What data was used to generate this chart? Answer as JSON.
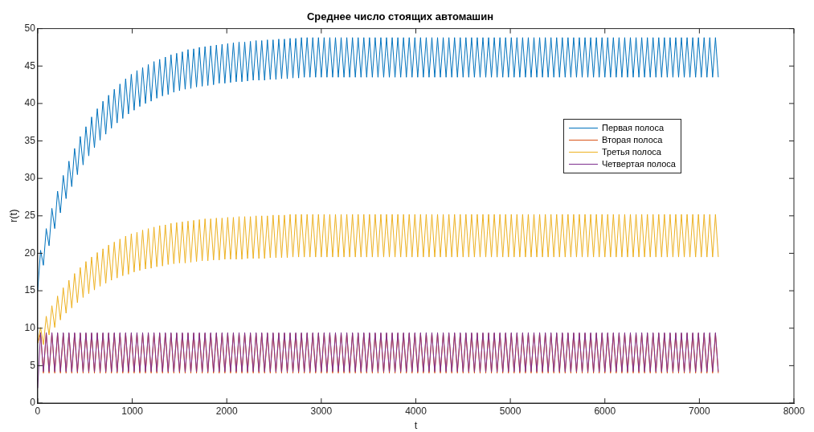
{
  "chart_data": {
    "type": "line",
    "title": "Среднее число стоящих автомашин",
    "xlabel": "t",
    "ylabel": "r(t)",
    "xlim": [
      0,
      8000
    ],
    "xticks": [
      0,
      1000,
      2000,
      3000,
      4000,
      5000,
      6000,
      7000,
      8000
    ],
    "ylim": [
      0,
      50
    ],
    "yticks": [
      0,
      5,
      10,
      15,
      20,
      25,
      30,
      35,
      40,
      45,
      50
    ],
    "grid": false,
    "legend": "top right",
    "marker": "none",
    "line_style": "solid",
    "x": [
      0,
      30,
      60,
      90,
      120,
      150,
      180,
      210,
      240,
      270,
      300,
      330,
      360,
      390,
      420,
      450,
      480,
      510,
      540,
      570,
      600,
      630,
      660,
      690,
      720,
      750,
      780,
      810,
      840,
      870,
      900,
      930,
      960,
      990,
      1020,
      1050,
      1080,
      1110,
      1140,
      1170,
      1200,
      1230,
      1260,
      1290,
      1320,
      1350,
      1380,
      1410,
      1440,
      1470,
      1500,
      1530,
      1560,
      1590,
      1620,
      1650,
      1680,
      1710,
      1740,
      1770,
      1800,
      1830,
      1860,
      1890,
      1920,
      1950,
      1980,
      2010,
      2040,
      2070,
      2100,
      2130,
      2160,
      2190,
      2220,
      2250,
      2280,
      2310,
      2340,
      2370,
      2400,
      2430,
      2460,
      2490,
      2520,
      2550,
      2580,
      2610,
      2640,
      2670,
      2700,
      2730,
      2760,
      2790,
      2820,
      2850,
      2880,
      2910,
      2940,
      2970,
      3000,
      3030,
      3060,
      3090,
      3120,
      3150,
      3180,
      3210,
      3240,
      3270,
      3300,
      3330,
      3360,
      3390,
      3420,
      3450,
      3480,
      3510,
      3540,
      3570,
      3600,
      3630,
      3660,
      3690,
      3720,
      3750,
      3780,
      3810,
      3840,
      3870,
      3900,
      3930,
      3960,
      3990,
      4020,
      4050,
      4080,
      4110,
      4140,
      4170,
      4200,
      4230,
      4260,
      4290,
      4320,
      4350,
      4380,
      4410,
      4440,
      4470,
      4500,
      4530,
      4560,
      4590,
      4620,
      4650,
      4680,
      4710,
      4740,
      4770,
      4800,
      4830,
      4860,
      4890,
      4920,
      4950,
      4980,
      5010,
      5040,
      5070,
      5100,
      5130,
      5160,
      5190,
      5220,
      5250,
      5280,
      5310,
      5340,
      5370,
      5400,
      5430,
      5460,
      5490,
      5520,
      5550,
      5580,
      5610,
      5640,
      5670,
      5700,
      5730,
      5760,
      5790,
      5820,
      5850,
      5880,
      5910,
      5940,
      5970,
      6000,
      6030,
      6060,
      6090,
      6120,
      6150,
      6180,
      6210,
      6240,
      6270,
      6300,
      6330,
      6360,
      6390,
      6420,
      6450,
      6480,
      6510,
      6540,
      6570,
      6600,
      6630,
      6660,
      6690,
      6720,
      6750,
      6780,
      6810,
      6840,
      6870,
      6900,
      6930,
      6960,
      6990,
      7020,
      7050,
      7080,
      7110,
      7140,
      7170,
      7200
    ],
    "series": [
      {
        "name": "Первая полоса",
        "color": "#0072bd",
        "values": [
          15,
          20.4,
          18.4,
          23.3,
          21.0,
          26.0,
          23.3,
          28.3,
          25.4,
          30.4,
          27.3,
          32.3,
          28.9,
          34.0,
          30.5,
          35.6,
          31.8,
          36.9,
          33.0,
          38.2,
          34.1,
          39.3,
          35.1,
          40.3,
          35.9,
          41.1,
          36.7,
          41.9,
          37.4,
          42.6,
          38.0,
          43.3,
          38.6,
          43.9,
          39.1,
          44.4,
          39.6,
          44.8,
          40.0,
          45.2,
          40.3,
          45.6,
          40.7,
          45.9,
          41.0,
          46.2,
          41.2,
          46.5,
          41.5,
          46.7,
          41.7,
          46.9,
          41.9,
          47.2,
          42.0,
          47.3,
          42.2,
          47.5,
          42.3,
          47.6,
          42.4,
          47.7,
          42.5,
          47.8,
          42.7,
          47.9,
          42.7,
          48.0,
          42.8,
          48.1,
          42.9,
          48.2,
          42.9,
          48.2,
          43.0,
          48.3,
          43.1,
          48.4,
          43.1,
          48.4,
          43.1,
          48.5,
          43.2,
          48.5,
          43.2,
          48.6,
          43.3,
          48.6,
          43.3,
          48.7,
          43.4,
          48.7,
          43.4,
          48.8,
          43.5,
          48.8,
          43.5,
          48.8,
          43.5,
          48.8,
          43.5,
          48.8,
          43.5,
          48.8,
          43.5,
          48.8,
          43.5,
          48.8,
          43.5,
          48.8,
          43.5,
          48.8,
          43.5,
          48.8,
          43.5,
          48.8,
          43.5,
          48.8,
          43.5,
          48.8,
          43.5,
          48.8,
          43.5,
          48.8,
          43.5,
          48.8,
          43.5,
          48.8,
          43.5,
          48.8,
          43.5,
          48.8,
          43.5,
          48.8,
          43.5,
          48.8,
          43.5,
          48.8,
          43.5,
          48.8,
          43.5,
          48.8,
          43.5,
          48.8,
          43.5,
          48.8,
          43.5,
          48.8,
          43.5,
          48.8,
          43.5,
          48.8,
          43.5,
          48.8,
          43.5,
          48.8,
          43.5,
          48.8,
          43.5,
          48.8,
          43.5,
          48.8,
          43.5,
          48.8,
          43.5,
          48.8,
          43.5,
          48.8,
          43.5,
          48.8,
          43.5,
          48.8,
          43.5,
          48.8,
          43.5,
          48.8,
          43.5,
          48.8,
          43.5,
          48.8,
          43.5,
          48.8,
          43.5,
          48.8,
          43.5,
          48.8,
          43.5,
          48.8,
          43.5,
          48.8,
          43.5,
          48.8,
          43.5,
          48.8,
          43.5,
          48.8,
          43.5,
          48.8,
          43.5,
          48.8,
          43.5,
          48.8,
          43.5,
          48.8,
          43.5,
          48.8,
          43.5,
          48.8,
          43.5,
          48.8,
          43.5,
          48.8,
          43.5,
          48.8,
          43.5,
          48.8,
          43.5,
          48.8,
          43.5,
          48.8,
          43.5,
          48.8,
          43.5,
          48.8,
          43.5,
          48.8,
          43.5,
          48.8,
          43.5,
          48.8,
          43.5,
          48.8,
          43.5,
          48.8,
          43.5,
          48.8,
          43.5,
          48.8,
          43.5,
          48.8,
          43.5
        ]
      },
      {
        "name": "Вторая полоса",
        "color": "#d95319",
        "values": [
          8,
          9.3,
          4.0,
          9.3,
          4.0,
          9.3,
          4.0,
          9.3,
          4.0,
          9.3,
          4.0,
          9.3,
          4.0,
          9.3,
          4.0,
          9.3,
          4.0,
          9.3,
          4.0,
          9.3,
          4.0,
          9.3,
          4.0,
          9.3,
          4.0,
          9.3,
          4.0,
          9.3,
          4.0,
          9.3,
          4.0,
          9.3,
          4.0,
          9.3,
          4.0,
          9.3,
          4.0,
          9.3,
          4.0,
          9.3,
          4.0,
          9.3,
          4.0,
          9.3,
          4.0,
          9.3,
          4.0,
          9.3,
          4.0,
          9.3,
          4.0,
          9.3,
          4.0,
          9.3,
          4.0,
          9.3,
          4.0,
          9.3,
          4.0,
          9.3,
          4.0,
          9.3,
          4.0,
          9.3,
          4.0,
          9.3,
          4.0,
          9.3,
          4.0,
          9.3,
          4.0,
          9.3,
          4.0,
          9.3,
          4.0,
          9.3,
          4.0,
          9.3,
          4.0,
          9.3,
          4.0,
          9.3,
          4.0,
          9.3,
          4.0,
          9.3,
          4.0,
          9.3,
          4.0,
          9.3,
          4.0,
          9.3,
          4.0,
          9.3,
          4.0,
          9.3,
          4.0,
          9.3,
          4.0,
          9.3,
          4.0,
          9.3,
          4.0,
          9.3,
          4.0,
          9.3,
          4.0,
          9.3,
          4.0,
          9.3,
          4.0,
          9.3,
          4.0,
          9.3,
          4.0,
          9.3,
          4.0,
          9.3,
          4.0,
          9.3,
          4.0,
          9.3,
          4.0,
          9.3,
          4.0,
          9.3,
          4.0,
          9.3,
          4.0,
          9.3,
          4.0,
          9.3,
          4.0,
          9.3,
          4.0,
          9.3,
          4.0,
          9.3,
          4.0,
          9.3,
          4.0,
          9.3,
          4.0,
          9.3,
          4.0,
          9.3,
          4.0,
          9.3,
          4.0,
          9.3,
          4.0,
          9.3,
          4.0,
          9.3,
          4.0,
          9.3,
          4.0,
          9.3,
          4.0,
          9.3,
          4.0,
          9.3,
          4.0,
          9.3,
          4.0,
          9.3,
          4.0,
          9.3,
          4.0,
          9.3,
          4.0,
          9.3,
          4.0,
          9.3,
          4.0,
          9.3,
          4.0,
          9.3,
          4.0,
          9.3,
          4.0,
          9.3,
          4.0,
          9.3,
          4.0,
          9.3,
          4.0,
          9.3,
          4.0,
          9.3,
          4.0,
          9.3,
          4.0,
          9.3,
          4.0,
          9.3,
          4.0,
          9.3,
          4.0,
          9.3,
          4.0,
          9.3,
          4.0,
          9.3,
          4.0,
          9.3,
          4.0,
          9.3,
          4.0,
          9.3,
          4.0,
          9.3,
          4.0,
          9.3,
          4.0,
          9.3,
          4.0,
          9.3,
          4.0,
          9.3,
          4.0,
          9.3,
          4.0,
          9.3,
          4.0,
          9.3,
          4.0,
          9.3,
          4.0,
          9.3,
          4.0,
          9.3,
          4.0,
          9.3,
          4.0,
          9.3,
          4.0,
          9.3,
          4.0,
          9.3,
          4.0
        ]
      },
      {
        "name": "Третья полоса",
        "color": "#edb120",
        "values": [
          8,
          10.1,
          7.8,
          11.6,
          9.1,
          13.0,
          10.1,
          14.3,
          11.1,
          15.4,
          12.0,
          16.4,
          12.7,
          17.3,
          13.4,
          18.1,
          14.1,
          18.9,
          14.6,
          19.5,
          15.1,
          20.1,
          15.6,
          20.6,
          16.0,
          21.1,
          16.4,
          21.5,
          16.7,
          21.9,
          17.0,
          22.3,
          17.2,
          22.6,
          17.5,
          22.8,
          17.7,
          23.1,
          17.9,
          23.3,
          18.0,
          23.5,
          18.2,
          23.7,
          18.3,
          23.8,
          18.5,
          24.0,
          18.6,
          24.1,
          18.7,
          24.2,
          18.7,
          24.3,
          18.8,
          24.4,
          18.9,
          24.5,
          19.0,
          24.6,
          19.0,
          24.6,
          19.1,
          24.7,
          19.1,
          24.7,
          19.2,
          24.8,
          19.2,
          24.8,
          19.2,
          24.9,
          19.2,
          24.9,
          19.3,
          24.9,
          19.3,
          25.0,
          19.3,
          25.0,
          19.3,
          25.0,
          19.4,
          25.1,
          19.4,
          25.1,
          19.4,
          25.1,
          19.4,
          25.2,
          19.5,
          25.2,
          19.5,
          25.2,
          19.5,
          25.2,
          19.5,
          25.2,
          19.5,
          25.2,
          19.5,
          25.2,
          19.5,
          25.2,
          19.5,
          25.2,
          19.5,
          25.2,
          19.5,
          25.2,
          19.5,
          25.2,
          19.5,
          25.2,
          19.5,
          25.2,
          19.5,
          25.2,
          19.5,
          25.2,
          19.5,
          25.2,
          19.5,
          25.2,
          19.5,
          25.2,
          19.5,
          25.2,
          19.5,
          25.2,
          19.5,
          25.2,
          19.5,
          25.2,
          19.5,
          25.2,
          19.5,
          25.2,
          19.5,
          25.2,
          19.5,
          25.2,
          19.5,
          25.2,
          19.5,
          25.2,
          19.5,
          25.2,
          19.5,
          25.2,
          19.5,
          25.2,
          19.5,
          25.2,
          19.5,
          25.2,
          19.5,
          25.2,
          19.5,
          25.2,
          19.5,
          25.2,
          19.5,
          25.2,
          19.5,
          25.2,
          19.5,
          25.2,
          19.5,
          25.2,
          19.5,
          25.2,
          19.5,
          25.2,
          19.5,
          25.2,
          19.5,
          25.2,
          19.5,
          25.2,
          19.5,
          25.2,
          19.5,
          25.2,
          19.5,
          25.2,
          19.5,
          25.2,
          19.5,
          25.2,
          19.5,
          25.2,
          19.5,
          25.2,
          19.5,
          25.2,
          19.5,
          25.2,
          19.5,
          25.2,
          19.5,
          25.2,
          19.5,
          25.2,
          19.5,
          25.2,
          19.5,
          25.2,
          19.5,
          25.2,
          19.5,
          25.2,
          19.5,
          25.2,
          19.5,
          25.2,
          19.5,
          25.2,
          19.5,
          25.2,
          19.5,
          25.2,
          19.5,
          25.2,
          19.5,
          25.2,
          19.5,
          25.2,
          19.5,
          25.2,
          19.5,
          25.2,
          19.5,
          25.2,
          19.5,
          25.2,
          19.5,
          25.2,
          19.5,
          25.2,
          19.5
        ]
      },
      {
        "name": "Четвертая полоса",
        "color": "#7e2f8e",
        "values": [
          2,
          9.4,
          4.2,
          9.4,
          4.2,
          9.4,
          4.2,
          9.4,
          4.2,
          9.4,
          4.2,
          9.4,
          4.2,
          9.4,
          4.2,
          9.4,
          4.2,
          9.4,
          4.2,
          9.4,
          4.2,
          9.4,
          4.2,
          9.4,
          4.2,
          9.4,
          4.2,
          9.4,
          4.2,
          9.4,
          4.2,
          9.4,
          4.2,
          9.4,
          4.2,
          9.4,
          4.2,
          9.4,
          4.2,
          9.4,
          4.2,
          9.4,
          4.2,
          9.4,
          4.2,
          9.4,
          4.2,
          9.4,
          4.2,
          9.4,
          4.2,
          9.4,
          4.2,
          9.4,
          4.2,
          9.4,
          4.2,
          9.4,
          4.2,
          9.4,
          4.2,
          9.4,
          4.2,
          9.4,
          4.2,
          9.4,
          4.2,
          9.4,
          4.2,
          9.4,
          4.2,
          9.4,
          4.2,
          9.4,
          4.2,
          9.4,
          4.2,
          9.4,
          4.2,
          9.4,
          4.2,
          9.4,
          4.2,
          9.4,
          4.2,
          9.4,
          4.2,
          9.4,
          4.2,
          9.4,
          4.2,
          9.4,
          4.2,
          9.4,
          4.2,
          9.4,
          4.2,
          9.4,
          4.2,
          9.4,
          4.2,
          9.4,
          4.2,
          9.4,
          4.2,
          9.4,
          4.2,
          9.4,
          4.2,
          9.4,
          4.2,
          9.4,
          4.2,
          9.4,
          4.2,
          9.4,
          4.2,
          9.4,
          4.2,
          9.4,
          4.2,
          9.4,
          4.2,
          9.4,
          4.2,
          9.4,
          4.2,
          9.4,
          4.2,
          9.4,
          4.2,
          9.4,
          4.2,
          9.4,
          4.2,
          9.4,
          4.2,
          9.4,
          4.2,
          9.4,
          4.2,
          9.4,
          4.2,
          9.4,
          4.2,
          9.4,
          4.2,
          9.4,
          4.2,
          9.4,
          4.2,
          9.4,
          4.2,
          9.4,
          4.2,
          9.4,
          4.2,
          9.4,
          4.2,
          9.4,
          4.2,
          9.4,
          4.2,
          9.4,
          4.2,
          9.4,
          4.2,
          9.4,
          4.2,
          9.4,
          4.2,
          9.4,
          4.2,
          9.4,
          4.2,
          9.4,
          4.2,
          9.4,
          4.2,
          9.4,
          4.2,
          9.4,
          4.2,
          9.4,
          4.2,
          9.4,
          4.2,
          9.4,
          4.2,
          9.4,
          4.2,
          9.4,
          4.2,
          9.4,
          4.2,
          9.4,
          4.2,
          9.4,
          4.2,
          9.4,
          4.2,
          9.4,
          4.2,
          9.4,
          4.2,
          9.4,
          4.2,
          9.4,
          4.2,
          9.4,
          4.2,
          9.4,
          4.2,
          9.4,
          4.2,
          9.4,
          4.2,
          9.4,
          4.2,
          9.4,
          4.2,
          9.4,
          4.2,
          9.4,
          4.2,
          9.4,
          4.2,
          9.4,
          4.2,
          9.4,
          4.2,
          9.4,
          4.2,
          9.4,
          4.2,
          9.4,
          4.2,
          9.4,
          4.2,
          9.4,
          4.2
        ]
      }
    ]
  }
}
